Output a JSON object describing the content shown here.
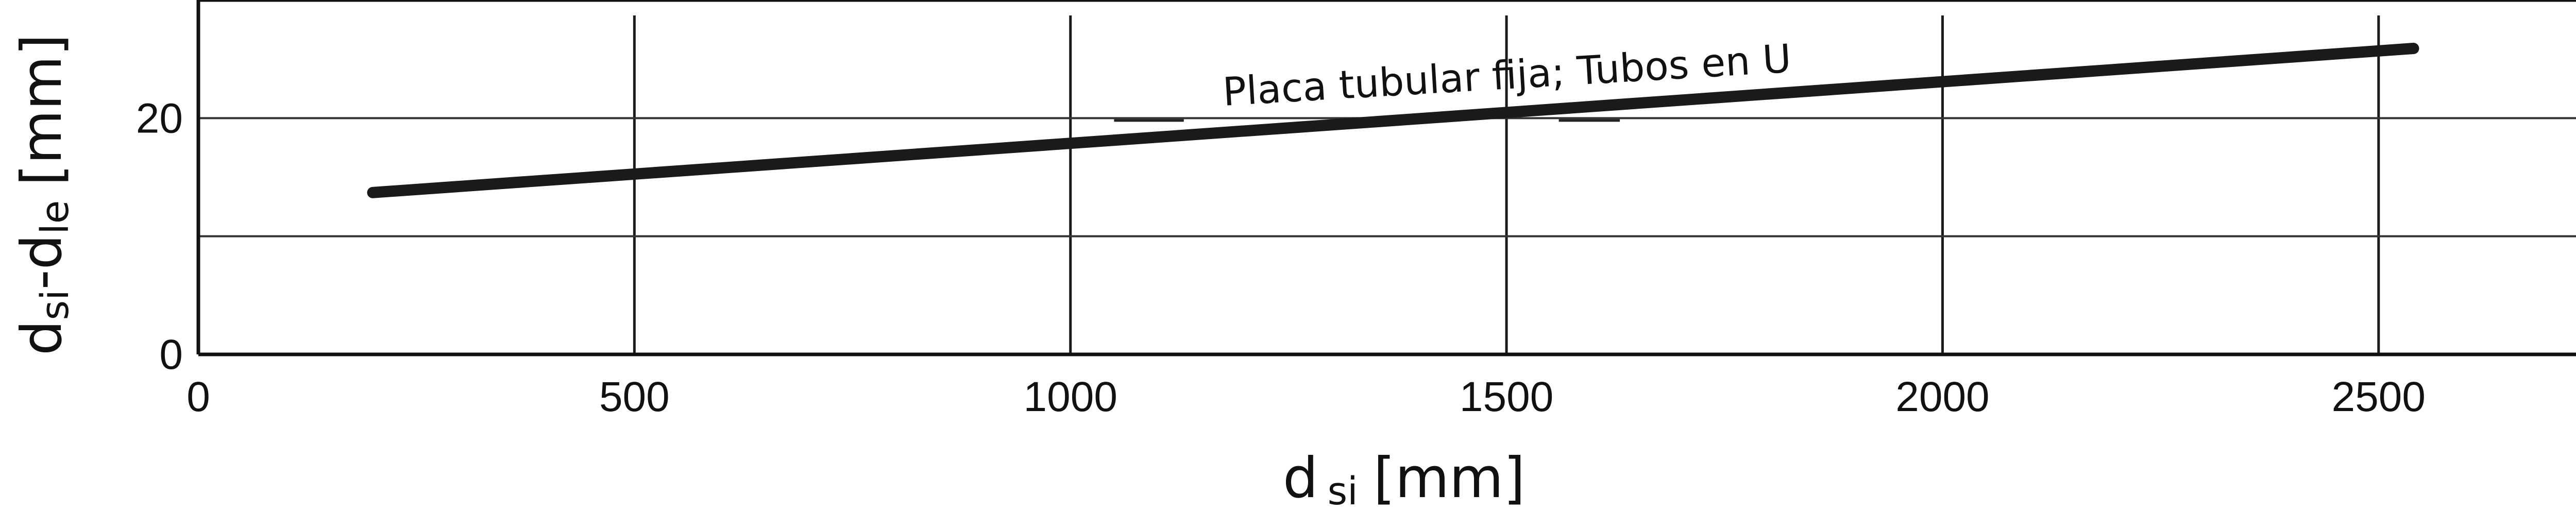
{
  "chart_data": {
    "type": "line",
    "title": "",
    "xlabel": {
      "main": "d",
      "sub": "si",
      "unit": "[mm]"
    },
    "ylabel": {
      "part1": "d",
      "sub1": "si",
      "dash": "-d",
      "sub2": "le",
      "unit": "[mm]"
    },
    "xlim": [
      0,
      2750
    ],
    "ylim": [
      0,
      30
    ],
    "x_ticks": [
      0,
      500,
      1000,
      1500,
      2000,
      2500
    ],
    "x_tick_labels": [
      "0",
      "500",
      "1000",
      "1500",
      "2000",
      "2500"
    ],
    "y_ticks": [
      0,
      10,
      20,
      30
    ],
    "y_tick_labels": [
      "0",
      "",
      "20",
      ""
    ],
    "grid": true,
    "series": [
      {
        "name": "Placa tubular fija; Tubos en U",
        "x": [
          200,
          2540
        ],
        "y": [
          13.7,
          25.9
        ]
      }
    ],
    "reference_segments": [
      {
        "x": [
          1050,
          1130
        ],
        "y": [
          19.8,
          19.8
        ]
      },
      {
        "x": [
          1560,
          1630
        ],
        "y": [
          19.8,
          19.8
        ]
      }
    ]
  }
}
